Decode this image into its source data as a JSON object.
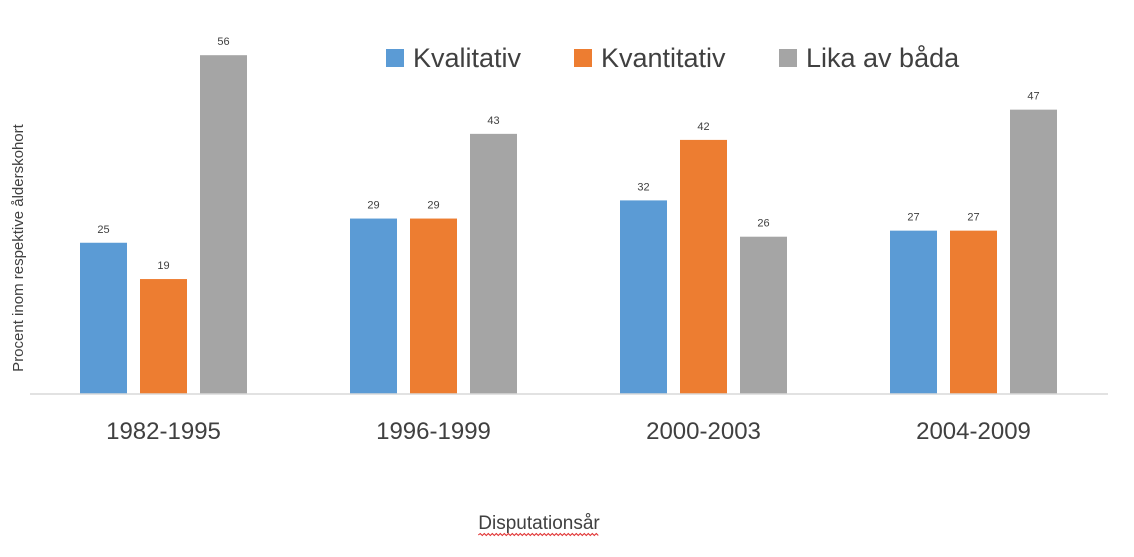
{
  "chart_data": {
    "type": "bar",
    "categories": [
      "1982-1995",
      "1996-1999",
      "2000-2003",
      "2004-2009"
    ],
    "series": [
      {
        "name": "Kvalitativ",
        "color": "#5B9BD5",
        "values": [
          25,
          29,
          32,
          27
        ]
      },
      {
        "name": "Kvantitativ",
        "color": "#ED7D31",
        "values": [
          19,
          29,
          42,
          27
        ]
      },
      {
        "name": "Lika av båda",
        "color": "#A5A5A5",
        "values": [
          56,
          43,
          26,
          47
        ]
      }
    ],
    "xlabel": "Disputationsår",
    "ylabel": "Procent inom respektive ålderskohort",
    "ylim": [
      0,
      56
    ],
    "grid": false,
    "legend_position": "top-right",
    "data_labels": true
  }
}
